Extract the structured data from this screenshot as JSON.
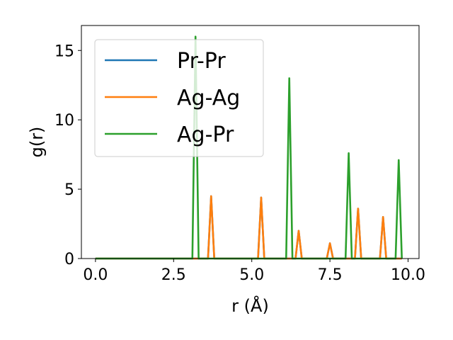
{
  "chart_data": {
    "type": "line",
    "xlabel": "r (Å)",
    "ylabel": "g(r)",
    "xlim": [
      -0.45,
      10.35
    ],
    "ylim": [
      0,
      16.8
    ],
    "xticks": [
      0.0,
      2.5,
      5.0,
      7.5,
      10.0
    ],
    "xtick_labels": [
      "0.0",
      "2.5",
      "5.0",
      "7.5",
      "10.0"
    ],
    "yticks": [
      0,
      5,
      10,
      15
    ],
    "ytick_labels": [
      "0",
      "5",
      "10",
      "15"
    ],
    "grid": false,
    "legend_position": "upper-left",
    "series": [
      {
        "name": "Pr-Pr",
        "color": "#1f77b4",
        "x": [
          0.0,
          3.6,
          3.7,
          3.8,
          5.2,
          5.3,
          5.4,
          6.4,
          6.5,
          6.6,
          7.4,
          7.5,
          7.6,
          8.3,
          8.4,
          8.5,
          9.1,
          9.2,
          9.3,
          9.8
        ],
        "y": [
          0,
          0,
          4.5,
          0,
          0,
          4.4,
          0,
          0,
          2.0,
          0,
          0,
          1.1,
          0,
          0,
          3.6,
          0,
          0,
          3.0,
          0,
          0
        ]
      },
      {
        "name": "Ag-Ag",
        "color": "#ff7f0e",
        "x": [
          0.0,
          3.6,
          3.7,
          3.8,
          5.2,
          5.3,
          5.4,
          6.4,
          6.5,
          6.6,
          7.4,
          7.5,
          7.6,
          8.3,
          8.4,
          8.5,
          9.1,
          9.2,
          9.3,
          9.8
        ],
        "y": [
          0,
          0,
          4.5,
          0,
          0,
          4.4,
          0,
          0,
          2.0,
          0,
          0,
          1.1,
          0,
          0,
          3.6,
          0,
          0,
          3.0,
          0,
          0
        ]
      },
      {
        "name": "Ag-Pr",
        "color": "#2ca02c",
        "x": [
          0.0,
          3.1,
          3.2,
          3.3,
          6.1,
          6.2,
          6.3,
          8.0,
          8.1,
          8.2,
          9.6,
          9.7,
          9.8
        ],
        "y": [
          0,
          0,
          16.0,
          0,
          0,
          13.0,
          0,
          0,
          7.6,
          0,
          0,
          7.1,
          0
        ]
      }
    ]
  }
}
